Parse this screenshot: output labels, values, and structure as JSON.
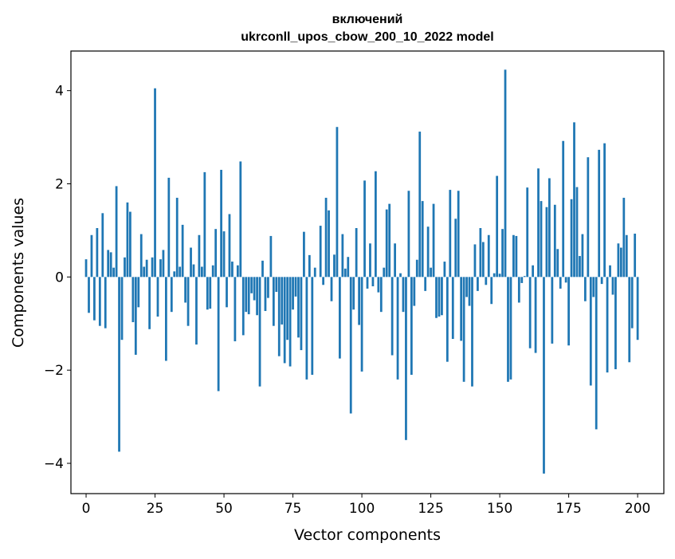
{
  "chart_data": {
    "type": "bar",
    "title_line1": "включений",
    "title_line2": "ukrconll_upos_cbow_200_10_2022 model",
    "xlabel": "Vector components",
    "ylabel": "Components values",
    "xlim": [
      -5.5,
      209.5
    ],
    "ylim": [
      -4.65,
      4.85
    ],
    "x_ticks": [
      0,
      25,
      50,
      75,
      100,
      125,
      150,
      175,
      200
    ],
    "x_tick_labels": [
      "0",
      "25",
      "50",
      "75",
      "100",
      "125",
      "150",
      "175",
      "200"
    ],
    "y_ticks": [
      -4,
      -2,
      0,
      2,
      4
    ],
    "y_tick_labels": [
      "−4",
      "−2",
      "0",
      "2",
      "4"
    ],
    "grid": false,
    "legend": "none",
    "bar_color": "#1f77b4",
    "x_start": 0,
    "values": [
      0.38,
      -0.77,
      0.9,
      -0.93,
      1.05,
      -1.05,
      1.37,
      -1.1,
      0.58,
      0.53,
      0.2,
      1.95,
      -3.75,
      -1.35,
      0.42,
      1.6,
      1.4,
      -0.97,
      -1.67,
      -0.65,
      0.92,
      0.22,
      0.37,
      -1.12,
      0.42,
      4.05,
      -0.85,
      0.38,
      0.58,
      -1.8,
      2.13,
      -0.75,
      0.12,
      1.7,
      0.22,
      1.12,
      -0.55,
      -1.05,
      0.63,
      0.27,
      -1.45,
      0.9,
      0.22,
      2.25,
      -0.7,
      -0.68,
      0.25,
      1.03,
      -2.45,
      2.3,
      0.98,
      -0.65,
      1.35,
      0.33,
      -1.38,
      0.25,
      2.48,
      -1.25,
      -0.75,
      -0.8,
      -0.35,
      -0.5,
      -0.82,
      -2.35,
      0.35,
      -0.73,
      -0.45,
      0.88,
      -1.05,
      -0.32,
      -1.7,
      -1.02,
      -1.85,
      -1.35,
      -1.92,
      -0.7,
      -0.42,
      -1.3,
      -1.57,
      0.97,
      -2.2,
      0.47,
      -2.1,
      0.2,
      0.0,
      1.1,
      -0.17,
      1.7,
      1.43,
      -0.52,
      0.48,
      3.22,
      -1.75,
      0.92,
      0.18,
      0.43,
      -2.93,
      -0.7,
      1.05,
      -1.03,
      -2.03,
      2.07,
      -0.25,
      0.72,
      -0.2,
      2.27,
      -0.33,
      -0.75,
      0.2,
      1.45,
      1.57,
      -1.68,
      0.72,
      -2.2,
      0.08,
      -0.75,
      -3.5,
      1.85,
      -2.1,
      -0.62,
      0.37,
      3.12,
      1.63,
      -0.3,
      1.08,
      0.2,
      1.57,
      -0.88,
      -0.85,
      -0.82,
      0.33,
      -1.82,
      1.87,
      -1.33,
      1.25,
      1.85,
      -1.37,
      -2.25,
      -0.43,
      -0.62,
      -2.35,
      0.7,
      -0.3,
      1.05,
      0.75,
      -0.17,
      0.9,
      -0.58,
      0.08,
      2.17,
      0.07,
      1.03,
      4.45,
      -2.25,
      -2.2,
      0.9,
      0.88,
      -0.55,
      -0.13,
      0.02,
      1.92,
      -1.53,
      0.25,
      -1.63,
      2.33,
      1.63,
      -4.22,
      1.5,
      2.12,
      -1.43,
      1.55,
      0.6,
      -0.25,
      2.92,
      -0.12,
      -1.47,
      1.67,
      3.32,
      1.93,
      0.45,
      0.92,
      -0.52,
      2.57,
      -2.33,
      -0.43,
      -3.27,
      2.73,
      -0.15,
      2.87,
      -2.05,
      0.25,
      -0.38,
      -1.98,
      0.72,
      0.63,
      1.7,
      0.9,
      -1.83,
      -1.1,
      0.93,
      -1.35
    ]
  }
}
